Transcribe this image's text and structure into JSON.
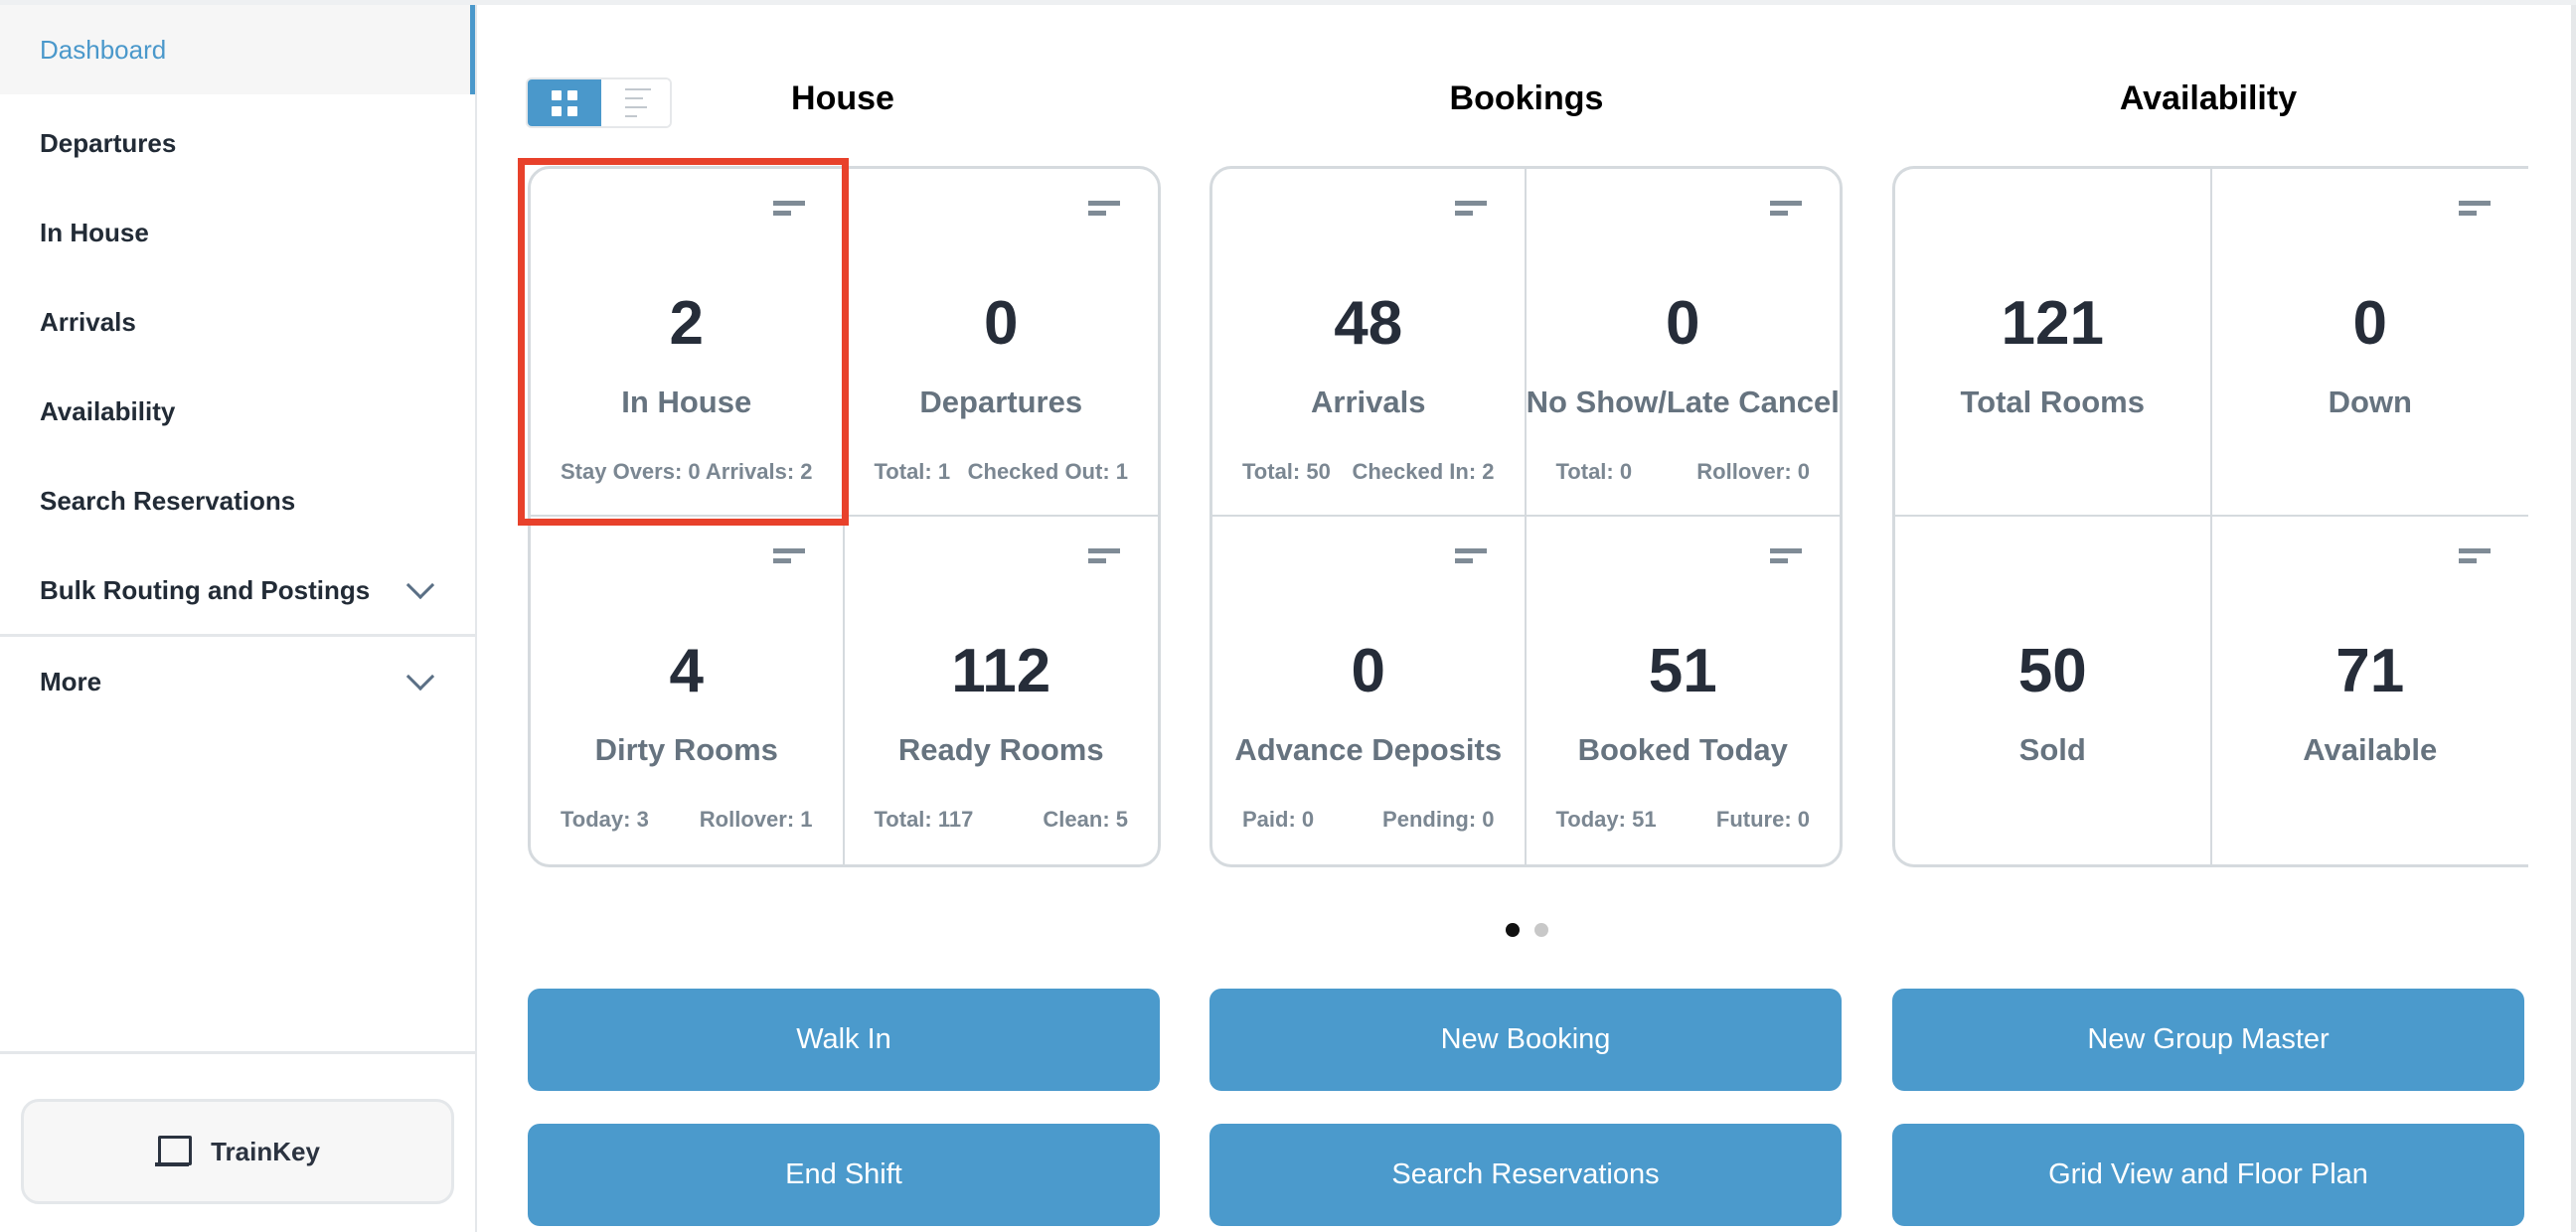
{
  "sidebar": {
    "items": [
      {
        "label": "Dashboard",
        "active": true
      },
      {
        "label": "Departures"
      },
      {
        "label": "In House"
      },
      {
        "label": "Arrivals"
      },
      {
        "label": "Availability"
      },
      {
        "label": "Search Reservations"
      },
      {
        "label": "Bulk Routing and Postings",
        "expandable": true
      },
      {
        "label": "More",
        "expandable": true
      }
    ],
    "trainkey": {
      "label": "TrainKey",
      "icon": "laptop-icon"
    }
  },
  "view_toggle": {
    "selected": "grid",
    "options": [
      "grid",
      "list"
    ]
  },
  "sections": [
    {
      "title": "House",
      "tiles": [
        {
          "value": "2",
          "label": "In House",
          "subs": [
            "Stay Overs: 0",
            "Arrivals: 2"
          ],
          "menu": true
        },
        {
          "value": "0",
          "label": "Departures",
          "subs": [
            "Total: 1",
            "Checked Out: 1"
          ],
          "menu": true
        },
        {
          "value": "4",
          "label": "Dirty Rooms",
          "subs": [
            "Today: 3",
            "Rollover: 1"
          ],
          "menu": true
        },
        {
          "value": "112",
          "label": "Ready Rooms",
          "subs": [
            "Total: 117",
            "Clean: 5"
          ],
          "menu": true
        }
      ]
    },
    {
      "title": "Bookings",
      "tiles": [
        {
          "value": "48",
          "label": "Arrivals",
          "subs": [
            "Total: 50",
            "Checked In: 2"
          ],
          "menu": true
        },
        {
          "value": "0",
          "label": "No Show/Late Cancel",
          "subs": [
            "Total: 0",
            "Rollover: 0"
          ],
          "menu": true
        },
        {
          "value": "0",
          "label": "Advance Deposits",
          "subs": [
            "Paid: 0",
            "Pending: 0"
          ],
          "menu": true
        },
        {
          "value": "51",
          "label": "Booked Today",
          "subs": [
            "Today: 51",
            "Future: 0"
          ],
          "menu": true
        }
      ]
    },
    {
      "title": "Availability",
      "tiles": [
        {
          "value": "121",
          "label": "Total Rooms",
          "subs": [],
          "menu": false
        },
        {
          "value": "0",
          "label": "Down",
          "subs": [],
          "menu": true
        },
        {
          "value": "50",
          "label": "Sold",
          "subs": [],
          "menu": false
        },
        {
          "value": "71",
          "label": "Available",
          "subs": [],
          "menu": true
        }
      ]
    }
  ],
  "carousel": {
    "pages": 2,
    "current": 1
  },
  "actions": [
    "Walk In",
    "New Booking",
    "New Group Master",
    "End Shift",
    "Search Reservations",
    "Grid View and Floor Plan"
  ],
  "highlight": {
    "target": "In House tile",
    "color": "#e8412b"
  },
  "colors": {
    "accent": "#4a98cb",
    "button": "#4b9acc",
    "text": "#262d39",
    "muted": "#66737f"
  }
}
